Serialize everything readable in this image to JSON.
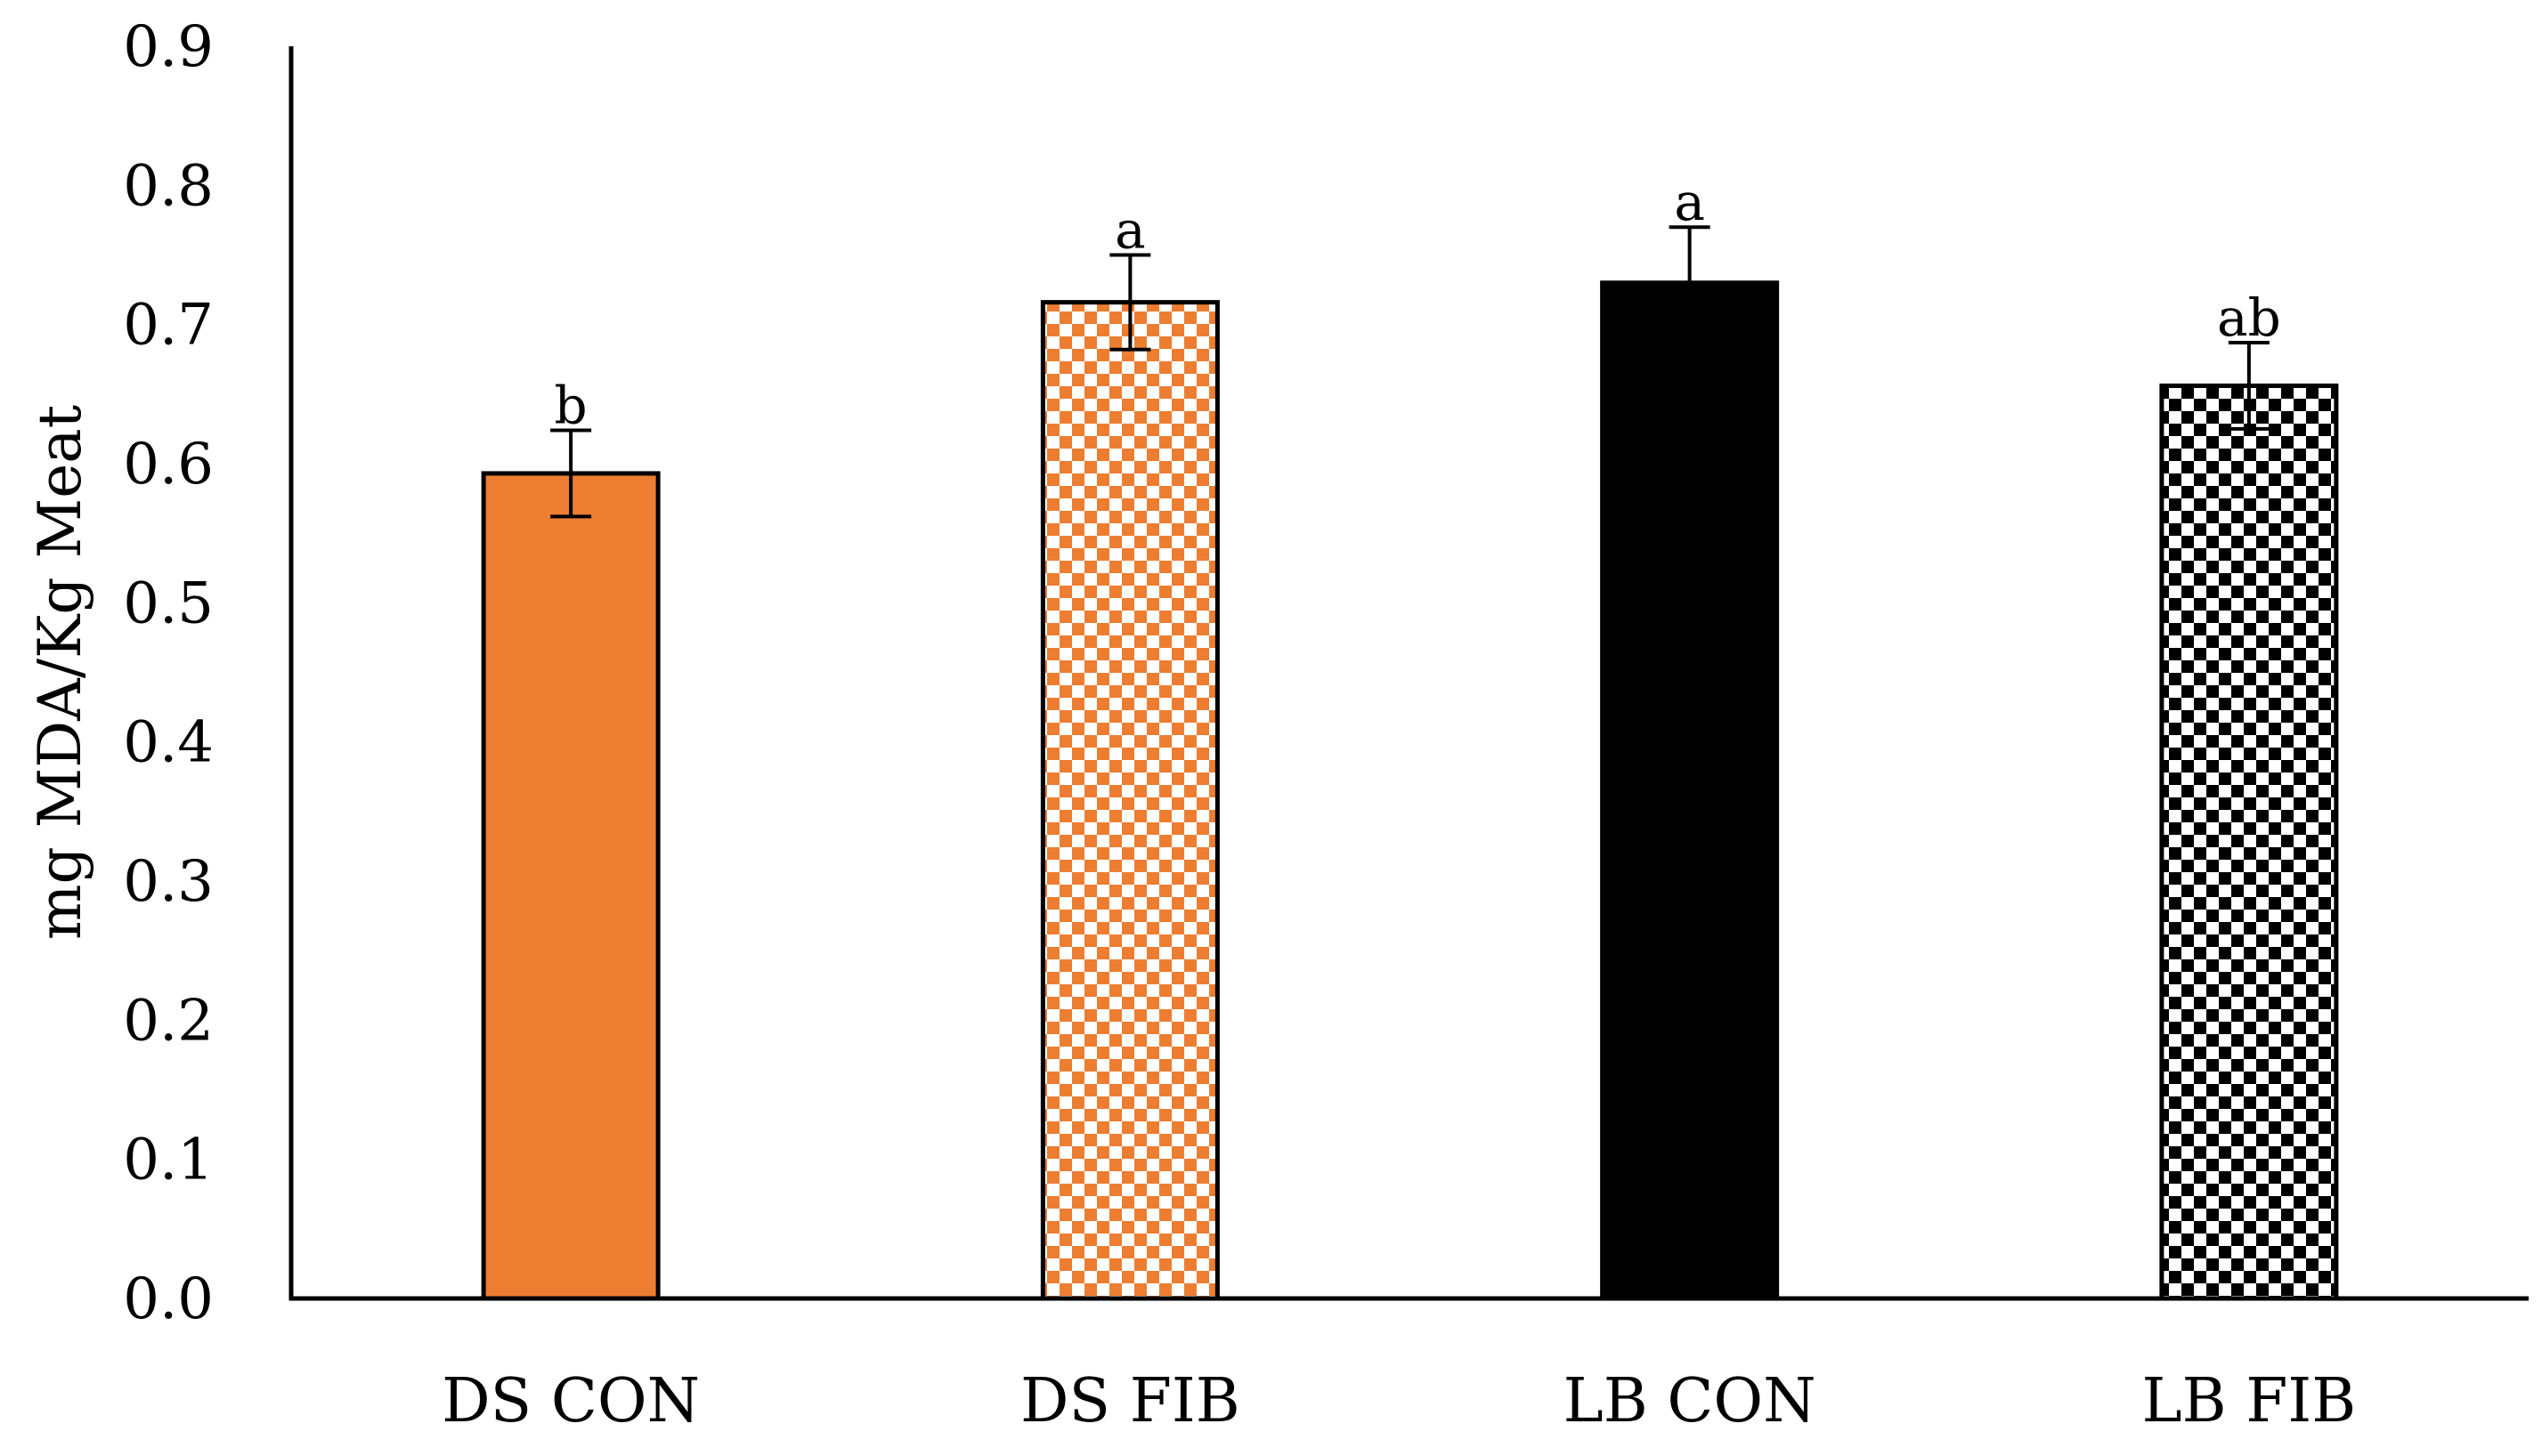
{
  "chart_data": {
    "type": "bar",
    "title": "",
    "xlabel": "",
    "ylabel": "mg MDA/Kg Meat",
    "ylim": [
      0,
      0.9
    ],
    "yticks": [
      "0.0",
      "0.1",
      "0.2",
      "0.3",
      "0.4",
      "0.5",
      "0.6",
      "0.7",
      "0.8",
      "0.9"
    ],
    "categories": [
      "DS CON",
      "DS FIB",
      "LB CON",
      "LB FIB"
    ],
    "values": [
      0.593,
      0.716,
      0.73,
      0.656
    ],
    "errors": [
      0.031,
      0.034,
      0.04,
      0.031
    ],
    "significance": [
      "b",
      "a",
      "a",
      "ab"
    ],
    "fills": [
      "solid",
      "checker",
      "solid",
      "checker"
    ],
    "colors": [
      "#ED7D31",
      "#ED7D31",
      "#000000",
      "#000000"
    ],
    "grid": false,
    "legend": "none"
  }
}
